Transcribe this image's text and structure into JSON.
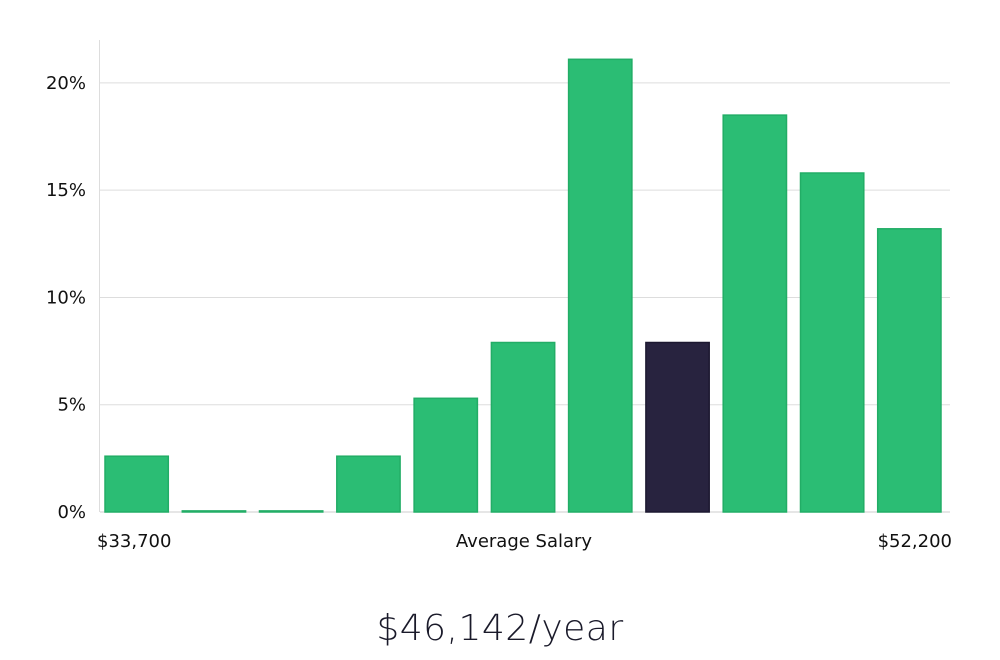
{
  "chart_data": {
    "type": "bar",
    "title": "",
    "xlabel": "Average Salary",
    "ylabel": "",
    "x_range_labels": {
      "min": "$33,700",
      "max": "$52,200"
    },
    "y_ticks": [
      "0%",
      "5%",
      "10%",
      "15%",
      "20%"
    ],
    "ylim": [
      0,
      22
    ],
    "grid": true,
    "values": [
      2.6,
      0.05,
      0.05,
      2.6,
      5.3,
      7.9,
      21.1,
      7.9,
      18.5,
      15.8,
      13.2
    ],
    "highlight_index": 7,
    "colors": {
      "bar": "#2bbd74",
      "bar_border": "#22ad66",
      "highlight": "#28233f",
      "grid": "#dddddd",
      "axis": "#cccccc"
    }
  },
  "salary": {
    "value_text": "$46,142/year"
  }
}
